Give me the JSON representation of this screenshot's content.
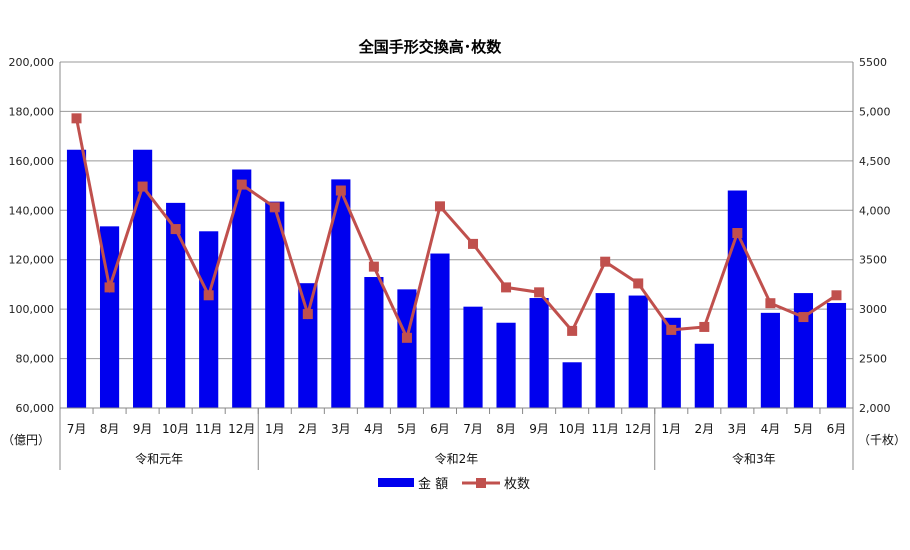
{
  "chart_data": {
    "type": "bar+line",
    "title": "全国手形交換高･枚数",
    "categories": [
      "7月",
      "8月",
      "9月",
      "10月",
      "11月",
      "12月",
      "1月",
      "2月",
      "3月",
      "4月",
      "5月",
      "6月",
      "7月",
      "8月",
      "9月",
      "10月",
      "11月",
      "12月",
      "1月",
      "2月",
      "3月",
      "4月",
      "5月",
      "6月"
    ],
    "groups": [
      {
        "label": "令和元年",
        "count": 6
      },
      {
        "label": "令和2年",
        "count": 12
      },
      {
        "label": "令和3年",
        "count": 6
      }
    ],
    "series": [
      {
        "name": "金 額",
        "type": "bar",
        "axis": "left",
        "color": "#0000ee",
        "values": [
          164500,
          133500,
          164500,
          143000,
          131500,
          156500,
          143500,
          110500,
          152500,
          113000,
          108000,
          122500,
          101000,
          94500,
          104500,
          78500,
          106500,
          105500,
          96500,
          86000,
          148000,
          98500,
          106500,
          102500
        ]
      },
      {
        "name": "枚数",
        "type": "line",
        "axis": "right",
        "color": "#c0504d",
        "values": [
          4930,
          3220,
          4240,
          3810,
          3140,
          4260,
          4030,
          2950,
          4200,
          3430,
          2710,
          4040,
          3660,
          3220,
          3170,
          2780,
          3480,
          3260,
          2790,
          2820,
          3770,
          3060,
          2920,
          3140
        ]
      }
    ],
    "y_left": {
      "min": 60000,
      "max": 200000,
      "step": 20000,
      "tick_labels": [
        "60,000",
        "80,000",
        "100,000",
        "120,000",
        "140,000",
        "160,000",
        "180,000",
        "200,000"
      ],
      "unit": "（億円）"
    },
    "y_right": {
      "min": 2000,
      "max": 5500,
      "step": 500,
      "tick_labels": [
        "2,000",
        "2500",
        "3000",
        "3500",
        "4,000",
        "4,500",
        "5,000",
        "5500"
      ],
      "unit": "（千枚）"
    },
    "grid": true,
    "legend_position": "bottom"
  }
}
